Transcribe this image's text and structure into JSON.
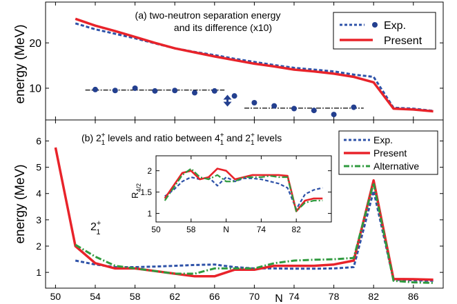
{
  "chart_data": [
    {
      "type": "line",
      "title": "(a) two-neutron separation energy",
      "title_line2": "and its difference (x10)",
      "ylabel": "energy  (MeV)",
      "ylim": [
        3,
        29
      ],
      "yticks": [
        10,
        20
      ],
      "xlim": [
        49,
        89
      ],
      "series": [
        {
          "name": "Exp.",
          "style": "dashed",
          "color": "#2e52a8",
          "x": [
            52,
            54,
            56,
            58,
            60,
            62,
            64,
            66,
            68,
            70,
            72,
            74,
            76,
            78,
            80,
            82,
            84,
            86,
            88
          ],
          "y": [
            24.3,
            23.0,
            22.0,
            21.0,
            19.9,
            18.8,
            18.0,
            17.3,
            16.5,
            15.8,
            15.1,
            14.5,
            14.1,
            13.7,
            13.0,
            12.5,
            5.7,
            5.5,
            5.0
          ]
        },
        {
          "name": "Present",
          "style": "solid",
          "color": "#e8232a",
          "x": [
            52,
            54,
            56,
            58,
            60,
            62,
            64,
            66,
            68,
            70,
            72,
            74,
            76,
            78,
            80,
            82,
            84,
            86,
            88
          ],
          "y": [
            25.3,
            23.8,
            22.6,
            21.3,
            20.0,
            18.8,
            17.9,
            17.0,
            16.2,
            15.4,
            14.8,
            14.1,
            13.7,
            13.2,
            12.5,
            11.3,
            5.5,
            5.3,
            4.9
          ]
        },
        {
          "name": "Exp.",
          "style": "markers",
          "color": "#233f8f",
          "x": [
            54,
            56,
            58,
            60,
            62,
            64,
            66,
            68,
            70,
            72,
            74,
            76,
            78,
            80
          ],
          "y": [
            9.7,
            9.5,
            10.0,
            9.4,
            9.5,
            9.0,
            9.4,
            8.3,
            6.8,
            6.1,
            5.5,
            5.1,
            4.2,
            5.8
          ]
        }
      ],
      "reference_lines": [
        {
          "x": [
            53,
            67
          ],
          "y": 9.6
        },
        {
          "x": [
            69,
            81
          ],
          "y": 5.6
        }
      ],
      "annotation": "double-arrow"
    },
    {
      "type": "line",
      "title_parts": {
        "prefix": "(b) 2",
        "mid1": " levels and ratio between 4",
        "mid2": " and 2",
        "suffix": " levels",
        "sup": "+",
        "sub": "1"
      },
      "ylabel": "energy  (MeV)",
      "xlabel": "N",
      "ylim": [
        0.4,
        6.8
      ],
      "yticks": [
        1,
        2,
        3,
        4,
        5,
        6
      ],
      "xlim": [
        49,
        89
      ],
      "xticks": [
        50,
        54,
        58,
        62,
        66,
        70,
        74,
        78,
        82,
        86
      ],
      "label_2plus": {
        "base": "2",
        "sup": "+",
        "sub": "1"
      },
      "series": [
        {
          "name": "Exp.",
          "style": "dashed",
          "color": "#2e52a8",
          "x": [
            52,
            54,
            56,
            58,
            60,
            62,
            64,
            66,
            68,
            70,
            72,
            74,
            76,
            78,
            80,
            82,
            84,
            86,
            88
          ],
          "y": [
            1.45,
            1.3,
            1.2,
            1.2,
            1.22,
            1.25,
            1.28,
            1.3,
            1.2,
            1.15,
            1.15,
            1.14,
            1.14,
            1.15,
            1.2,
            4.1,
            0.72,
            0.7,
            0.68
          ]
        },
        {
          "name": "Present",
          "style": "solid",
          "color": "#e8232a",
          "x": [
            50,
            52,
            54,
            56,
            58,
            60,
            62,
            64,
            66,
            68,
            70,
            72,
            74,
            76,
            78,
            80,
            82,
            84,
            86,
            88
          ],
          "y": [
            5.75,
            2.0,
            1.35,
            1.15,
            1.15,
            1.05,
            0.95,
            0.85,
            0.85,
            1.1,
            1.1,
            1.25,
            1.25,
            1.25,
            1.3,
            1.45,
            4.5,
            0.75,
            0.74,
            0.72
          ]
        },
        {
          "name": "Alternative",
          "style": "dashdot",
          "color": "#2f9a3e",
          "x": [
            52,
            54,
            56,
            58,
            60,
            62,
            64,
            66,
            68,
            70,
            72,
            74,
            76,
            78,
            80,
            82,
            84,
            86,
            88
          ],
          "y": [
            2.05,
            1.6,
            1.25,
            1.15,
            1.05,
            0.95,
            0.95,
            1.15,
            1.15,
            1.15,
            1.35,
            1.45,
            1.48,
            1.5,
            1.55,
            4.4,
            0.68,
            0.62,
            0.6
          ]
        }
      ]
    },
    {
      "type": "line",
      "role": "inset",
      "ylabel_parts": {
        "base": "R",
        "sub": "4/2"
      },
      "xlabel": "N",
      "xlim": [
        50,
        90
      ],
      "ylim": [
        0.8,
        2.35
      ],
      "xticks": [
        50,
        58,
        66,
        74,
        82
      ],
      "xtick_labels": [
        "50",
        "58",
        "N",
        "74",
        "82"
      ],
      "yticks": [
        1,
        1.5,
        2
      ],
      "ytick_labels": [
        "1",
        "1.5",
        "2"
      ],
      "series": [
        {
          "name": "Exp.",
          "style": "dashed",
          "color": "#2e52a8",
          "x": [
            52,
            54,
            56,
            58,
            60,
            62,
            64,
            66,
            68,
            70,
            72,
            74,
            76,
            78,
            80,
            82,
            84,
            86,
            88
          ],
          "y": [
            1.4,
            1.55,
            1.75,
            1.85,
            1.8,
            1.85,
            1.65,
            1.85,
            1.75,
            1.82,
            1.82,
            1.8,
            1.75,
            1.7,
            1.6,
            1.1,
            1.45,
            1.55,
            1.6
          ]
        },
        {
          "name": "Present",
          "style": "solid",
          "color": "#e8232a",
          "x": [
            52,
            54,
            56,
            58,
            60,
            62,
            64,
            66,
            68,
            70,
            72,
            74,
            76,
            78,
            80,
            82,
            84,
            86,
            88
          ],
          "y": [
            1.35,
            1.65,
            1.95,
            2.0,
            1.8,
            1.85,
            2.05,
            2.0,
            1.8,
            1.85,
            1.9,
            1.9,
            1.9,
            1.9,
            1.88,
            1.05,
            1.3,
            1.35,
            1.35
          ]
        },
        {
          "name": "Alternative",
          "style": "dashdot",
          "color": "#2f9a3e",
          "x": [
            52,
            54,
            56,
            58,
            60,
            62,
            64,
            66,
            68,
            70,
            72,
            74,
            76,
            78,
            80,
            82,
            84,
            86,
            88
          ],
          "y": [
            1.3,
            1.6,
            1.9,
            2.05,
            1.85,
            1.8,
            1.9,
            1.75,
            1.75,
            1.85,
            1.85,
            1.85,
            1.88,
            1.85,
            1.85,
            1.05,
            1.25,
            1.3,
            1.3
          ]
        }
      ]
    }
  ]
}
